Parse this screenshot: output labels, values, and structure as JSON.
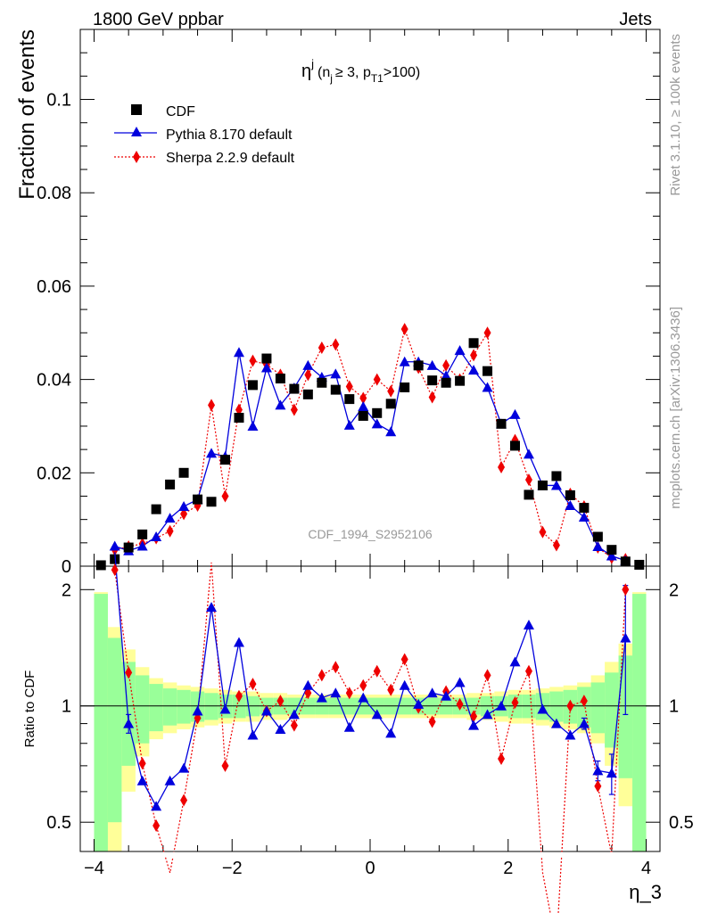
{
  "header": {
    "left": "1800 GeV ppbar",
    "right": "Jets"
  },
  "side_labels": {
    "rivet": "Rivet 3.1.10, ≥ 100k events",
    "mcplots": "mcplots.cern.ch [arXiv:1306.3436]"
  },
  "watermark": "CDF_1994_S2952106",
  "title": {
    "main": "η",
    "sup": "j",
    "paren_open": "(n",
    "sub_j": "j",
    "mid": "≥ 3, p",
    "sub_t": "T1",
    "paren_close": ">100)"
  },
  "colors": {
    "cdf": "#000000",
    "pythia": "#0000dd",
    "sherpa": "#ee0000",
    "band_green": "#99ff99",
    "band_yellow": "#ffff99"
  },
  "chart_data": [
    {
      "type": "scatter",
      "panel": "main",
      "ylabel": "Fraction of events",
      "xlabel": "",
      "xlim": [
        -4.2,
        4.2
      ],
      "ylim": [
        0,
        0.115
      ],
      "yticks": [
        0,
        0.02,
        0.04,
        0.06,
        0.08,
        0.1
      ],
      "ytick_labels": [
        "0",
        "0.02",
        "0.04",
        "0.06",
        "0.08",
        "0.1"
      ],
      "legend": [
        {
          "name": "CDF",
          "marker": "square"
        },
        {
          "name": "Pythia 8.170 default",
          "marker": "triangle"
        },
        {
          "name": "Sherpa 2.2.9 default",
          "marker": "diamond"
        }
      ],
      "series": [
        {
          "name": "CDF",
          "x": [
            -3.9,
            -3.7,
            -3.5,
            -3.3,
            -3.1,
            -2.9,
            -2.7,
            -2.5,
            -2.3,
            -2.1,
            -1.9,
            -1.7,
            -1.5,
            -1.3,
            -1.1,
            -0.9,
            -0.7,
            -0.5,
            -0.3,
            -0.1,
            0.1,
            0.3,
            0.5,
            0.7,
            0.9,
            1.1,
            1.3,
            1.5,
            1.7,
            1.9,
            2.1,
            2.3,
            2.5,
            2.7,
            2.9,
            3.1,
            3.3,
            3.5,
            3.7,
            3.9
          ],
          "values": [
            0.0002,
            0.0015,
            0.004,
            0.0068,
            0.0122,
            0.0175,
            0.02,
            0.0143,
            0.0138,
            0.0228,
            0.0318,
            0.0388,
            0.0445,
            0.0402,
            0.038,
            0.0368,
            0.0393,
            0.0378,
            0.0358,
            0.0322,
            0.0328,
            0.0348,
            0.0383,
            0.043,
            0.0398,
            0.0393,
            0.0397,
            0.0478,
            0.0418,
            0.0305,
            0.0258,
            0.0153,
            0.0173,
            0.0193,
            0.0152,
            0.0125,
            0.0063,
            0.0035,
            0.001,
            0.0003
          ]
        },
        {
          "name": "Pythia 8.170 default",
          "x": [
            -3.7,
            -3.5,
            -3.3,
            -3.1,
            -2.9,
            -2.7,
            -2.5,
            -2.3,
            -2.1,
            -1.9,
            -1.7,
            -1.5,
            -1.3,
            -1.1,
            -0.9,
            -0.7,
            -0.5,
            -0.3,
            -0.1,
            0.1,
            0.3,
            0.5,
            0.7,
            0.9,
            1.1,
            1.3,
            1.5,
            1.7,
            1.9,
            2.1,
            2.3,
            2.5,
            2.7,
            2.9,
            3.1,
            3.3,
            3.5,
            3.7
          ],
          "values": [
            0.0043,
            0.0033,
            0.0043,
            0.0063,
            0.0103,
            0.0128,
            0.0143,
            0.0242,
            0.0235,
            0.0458,
            0.03,
            0.0425,
            0.0345,
            0.0382,
            0.043,
            0.0405,
            0.0412,
            0.0302,
            0.0342,
            0.0305,
            0.0288,
            0.0438,
            0.0438,
            0.043,
            0.0408,
            0.0462,
            0.042,
            0.0383,
            0.0305,
            0.0325,
            0.024,
            0.0173,
            0.0173,
            0.013,
            0.0105,
            0.0042,
            0.0022,
            0.0012
          ]
        },
        {
          "name": "Sherpa 2.2.9 default",
          "x": [
            -3.7,
            -3.5,
            -3.3,
            -3.1,
            -2.9,
            -2.7,
            -2.5,
            -2.3,
            -2.1,
            -1.9,
            -1.7,
            -1.5,
            -1.3,
            -1.1,
            -0.9,
            -0.7,
            -0.5,
            -0.3,
            -0.1,
            0.1,
            0.3,
            0.5,
            0.7,
            0.9,
            1.1,
            1.3,
            1.5,
            1.7,
            1.9,
            2.1,
            2.3,
            2.5,
            2.7,
            2.9,
            3.1,
            3.3,
            3.5,
            3.7
          ],
          "values": [
            0.0035,
            0.0042,
            0.0048,
            0.006,
            0.0075,
            0.0112,
            0.013,
            0.0345,
            0.015,
            0.0335,
            0.044,
            0.0432,
            0.041,
            0.0335,
            0.041,
            0.0468,
            0.0475,
            0.0385,
            0.036,
            0.04,
            0.0375,
            0.0508,
            0.0425,
            0.0362,
            0.043,
            0.04,
            0.0452,
            0.05,
            0.0212,
            0.027,
            0.0185,
            0.0073,
            0.0045,
            0.0155,
            0.0128,
            0.004,
            0.0018,
            0.0015
          ]
        }
      ]
    },
    {
      "type": "line",
      "panel": "ratio",
      "ylabel": "Ratio to CDF",
      "xlabel": "η_3",
      "xlim": [
        -4.2,
        4.2
      ],
      "ylim": [
        0.42,
        2.3
      ],
      "scale": "log",
      "reference": 1,
      "xticks": [
        -4,
        -2,
        0,
        2,
        4
      ],
      "xtick_labels": [
        "−4",
        "−2",
        "0",
        "2",
        "4"
      ],
      "yticks": [
        0.5,
        1,
        2
      ],
      "ytick_labels": [
        "0.5",
        "1",
        "2"
      ],
      "band_edges": [
        -4.0,
        -3.8,
        -3.6,
        -3.4,
        -3.2,
        -3.0,
        -2.8,
        -2.6,
        -2.4,
        -2.2,
        -2.0,
        -1.8,
        -1.6,
        -1.4,
        -1.2,
        -1.0,
        -0.8,
        -0.6,
        -0.4,
        -0.2,
        0.0,
        0.2,
        0.4,
        0.6,
        0.8,
        1.0,
        1.2,
        1.4,
        1.6,
        1.8,
        2.0,
        2.2,
        2.4,
        2.6,
        2.8,
        3.0,
        3.2,
        3.4,
        3.6,
        3.8,
        4.0
      ],
      "band_green": [
        0.95,
        0.5,
        0.3,
        0.2,
        0.14,
        0.11,
        0.1,
        0.09,
        0.08,
        0.07,
        0.07,
        0.06,
        0.05,
        0.05,
        0.05,
        0.05,
        0.05,
        0.05,
        0.05,
        0.05,
        0.05,
        0.05,
        0.05,
        0.05,
        0.05,
        0.05,
        0.05,
        0.05,
        0.06,
        0.06,
        0.07,
        0.07,
        0.08,
        0.09,
        0.1,
        0.12,
        0.15,
        0.22,
        0.35,
        0.95
      ],
      "band_yellow": [
        0.97,
        0.6,
        0.4,
        0.26,
        0.18,
        0.15,
        0.13,
        0.12,
        0.11,
        0.1,
        0.09,
        0.09,
        0.08,
        0.08,
        0.07,
        0.07,
        0.07,
        0.07,
        0.07,
        0.07,
        0.07,
        0.07,
        0.07,
        0.07,
        0.07,
        0.07,
        0.07,
        0.08,
        0.08,
        0.09,
        0.1,
        0.1,
        0.11,
        0.12,
        0.13,
        0.15,
        0.2,
        0.3,
        0.45,
        0.97
      ],
      "series": [
        {
          "name": "Pythia 8.170 default",
          "x": [
            -3.7,
            -3.5,
            -3.3,
            -3.1,
            -2.9,
            -2.7,
            -2.5,
            -2.3,
            -2.1,
            -1.9,
            -1.7,
            -1.5,
            -1.3,
            -1.1,
            -0.9,
            -0.7,
            -0.5,
            -0.3,
            -0.1,
            0.1,
            0.3,
            0.5,
            0.7,
            0.9,
            1.1,
            1.3,
            1.5,
            1.7,
            1.9,
            2.1,
            2.3,
            2.5,
            2.7,
            2.9,
            3.1,
            3.3,
            3.5,
            3.7
          ],
          "values": [
            2.5,
            0.9,
            0.64,
            0.55,
            0.64,
            0.69,
            0.97,
            1.8,
            0.98,
            1.46,
            0.84,
            0.97,
            0.87,
            0.95,
            1.13,
            1.05,
            1.08,
            0.88,
            1.05,
            0.95,
            0.85,
            1.13,
            1.01,
            1.08,
            1.06,
            1.15,
            0.89,
            0.95,
            1.0,
            1.3,
            1.62,
            0.98,
            0.9,
            0.84,
            0.9,
            0.68,
            0.67,
            1.5
          ],
          "errors": [
            0,
            0.05,
            0,
            0,
            0,
            0,
            0,
            0,
            0,
            0,
            0,
            0,
            0,
            0,
            0,
            0,
            0,
            0,
            0,
            0,
            0,
            0,
            0,
            0,
            0,
            0,
            0,
            0,
            0,
            0,
            0,
            0,
            0,
            0,
            0.03,
            0.04,
            0.08,
            0.55
          ]
        },
        {
          "name": "Sherpa 2.2.9 default",
          "x": [
            -3.7,
            -3.5,
            -3.3,
            -3.1,
            -2.9,
            -2.7,
            -2.5,
            -2.3,
            -2.1,
            -1.9,
            -1.7,
            -1.5,
            -1.3,
            -1.1,
            -0.9,
            -0.7,
            -0.5,
            -0.3,
            -0.1,
            0.1,
            0.3,
            0.5,
            0.7,
            0.9,
            1.1,
            1.3,
            1.5,
            1.7,
            1.9,
            2.1,
            2.3,
            2.5,
            2.7,
            2.9,
            3.1,
            3.3,
            3.5,
            3.7
          ],
          "values": [
            2.25,
            1.22,
            0.71,
            0.49,
            0.37,
            0.57,
            0.93,
            2.35,
            0.7,
            1.06,
            1.14,
            0.97,
            1.03,
            0.89,
            1.08,
            1.2,
            1.26,
            1.08,
            1.13,
            1.23,
            1.1,
            1.32,
            0.99,
            0.91,
            1.09,
            1.01,
            0.94,
            1.2,
            0.73,
            1.02,
            1.23,
            0.37,
            0.24,
            1.0,
            1.03,
            0.62,
            0.41,
            2.0
          ]
        }
      ]
    }
  ]
}
